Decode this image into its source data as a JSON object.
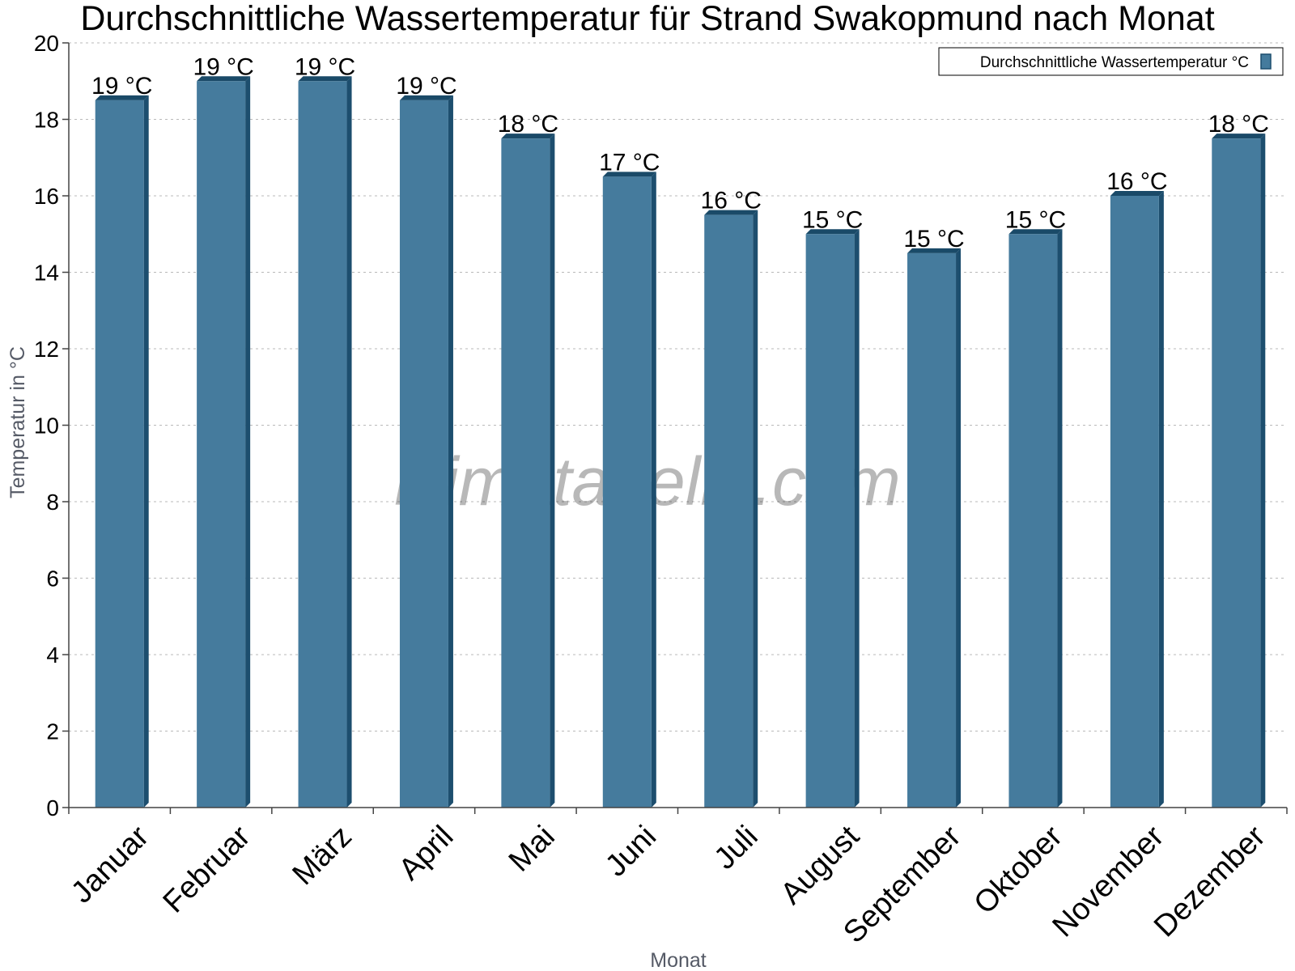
{
  "chart_data": {
    "type": "bar",
    "title": "Durchschnittliche Wassertemperatur für Strand Swakopmund nach Monat",
    "xlabel": "Monat",
    "ylabel": "Temperatur in °C",
    "categories": [
      "Januar",
      "Februar",
      "März",
      "April",
      "Mai",
      "Juni",
      "Juli",
      "August",
      "September",
      "Oktober",
      "November",
      "Dezember"
    ],
    "series": [
      {
        "name": "Durchschnittliche Wassertemperatur °C",
        "values": [
          18.5,
          19,
          19,
          18.5,
          17.5,
          16.5,
          15.5,
          15,
          14.5,
          15,
          16,
          17.5
        ],
        "labels": [
          "19 °C",
          "19 °C",
          "19 °C",
          "19 °C",
          "18 °C",
          "17 °C",
          "16 °C",
          "15 °C",
          "15 °C",
          "15 °C",
          "16 °C",
          "18 °C"
        ]
      }
    ],
    "ylim": [
      0,
      20
    ],
    "yticks": [
      "0",
      "2",
      "4",
      "6",
      "8",
      "10",
      "12",
      "14",
      "16",
      "18",
      "20"
    ],
    "grid": true,
    "legend": "top-right",
    "colors": {
      "bar": "#457b9d",
      "bar_side": "#1d4e6e",
      "bar_top": "#1a4a68"
    }
  },
  "watermark": "klimatabelle.com"
}
